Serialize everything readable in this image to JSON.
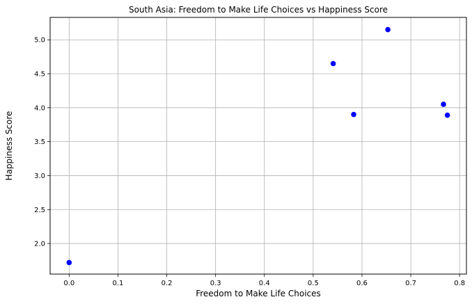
{
  "chart_data": {
    "type": "scatter",
    "title": "South Asia: Freedom to Make Life Choices vs Happiness Score",
    "xlabel": "Freedom to Make Life Choices",
    "ylabel": "Happiness Score",
    "xlim": [
      -0.039,
      0.814
    ],
    "ylim": [
      1.55,
      5.33
    ],
    "xticks": [
      0.0,
      0.1,
      0.2,
      0.3,
      0.4,
      0.5,
      0.6,
      0.7,
      0.8
    ],
    "xtick_labels": [
      "0.0",
      "0.1",
      "0.2",
      "0.3",
      "0.4",
      "0.5",
      "0.6",
      "0.7",
      "0.8"
    ],
    "yticks": [
      2.0,
      2.5,
      3.0,
      3.5,
      4.0,
      4.5,
      5.0
    ],
    "ytick_labels": [
      "2.0",
      "2.5",
      "3.0",
      "3.5",
      "4.0",
      "4.5",
      "5.0"
    ],
    "grid": true,
    "marker_color": "#0000ff",
    "points": [
      {
        "x": 0.0,
        "y": 1.72
      },
      {
        "x": 0.541,
        "y": 4.65
      },
      {
        "x": 0.583,
        "y": 3.9
      },
      {
        "x": 0.653,
        "y": 5.15
      },
      {
        "x": 0.767,
        "y": 4.05
      },
      {
        "x": 0.775,
        "y": 3.89
      }
    ]
  }
}
